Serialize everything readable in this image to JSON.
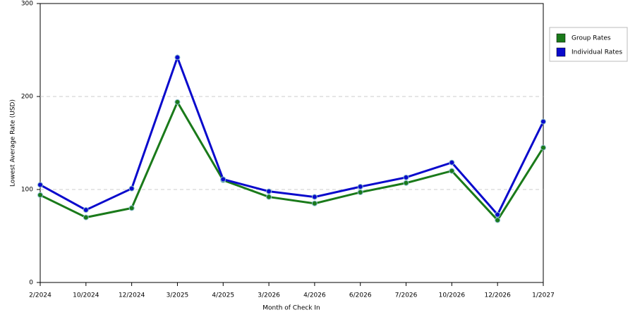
{
  "chart_data": {
    "type": "line",
    "x_label": "Month of Check In",
    "y_label": "Lowest Average Rate (USD)",
    "categories": [
      "2/2024",
      "10/2024",
      "12/2024",
      "3/2025",
      "4/2025",
      "3/2026",
      "4/2026",
      "6/2026",
      "7/2026",
      "10/2026",
      "12/2026",
      "1/2027"
    ],
    "series": [
      {
        "name": "Group Rates",
        "color": "#1a7a1a",
        "values": [
          94,
          70,
          80,
          194,
          110,
          92,
          85,
          97,
          107,
          120,
          67,
          145
        ]
      },
      {
        "name": "Individual Rates",
        "color": "#0a0acc",
        "values": [
          105,
          78,
          101,
          242,
          111,
          98,
          92,
          103,
          113,
          129,
          73,
          173
        ]
      }
    ],
    "ylim": [
      0,
      300
    ],
    "yticks": [
      0,
      100,
      200,
      300
    ],
    "grid": true,
    "legend": "right"
  }
}
